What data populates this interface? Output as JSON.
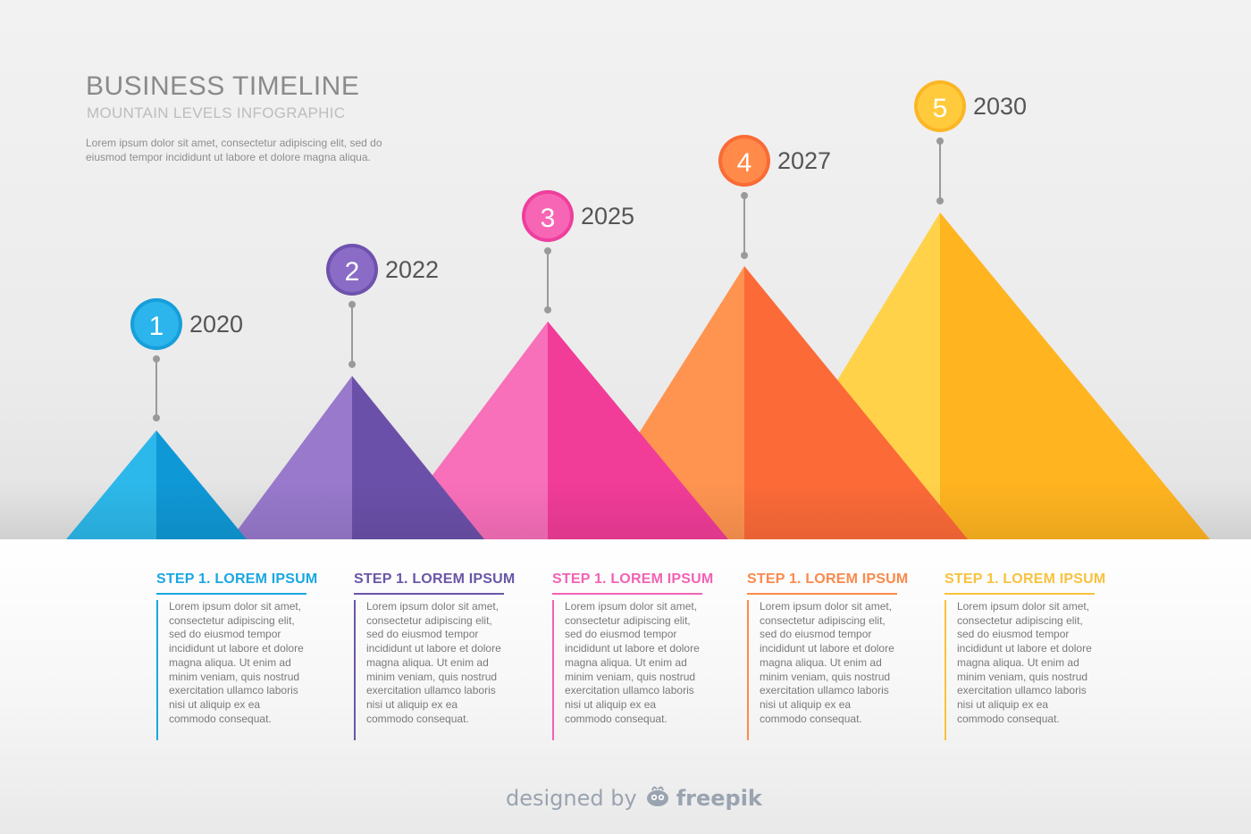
{
  "header": {
    "title": "BUSINESS TIMELINE",
    "subtitle": "MOUNTAIN LEVELS INFOGRAPHIC",
    "description": "Lorem ipsum dolor sit amet, consectetur adipiscing elit, sed do eiusmod tempor incididunt ut labore et dolore magna aliqua."
  },
  "milestones": [
    {
      "number": "1",
      "year": "2020",
      "color": "#1aa7e2",
      "light": "#45c6f2",
      "dark": "#0e91cf",
      "step_title": "STEP 1. LOREM IPSUM",
      "step_text": "Lorem ipsum dolor sit amet, consectetur adipiscing elit, sed do eiusmod tempor incididunt ut labore et dolore magna aliqua. Ut enim ad minim veniam, quis nostrud exercitation ullamco laboris nisi ut aliquip ex ea commodo consequat."
    },
    {
      "number": "2",
      "year": "2022",
      "color": "#7a5bb8",
      "light": "#9a7fd0",
      "dark": "#6a4ea6",
      "step_title": "STEP 1. LOREM IPSUM",
      "step_text": "Lorem ipsum dolor sit amet, consectetur adipiscing elit, sed do eiusmod tempor incididunt ut labore et dolore magna aliqua. Ut enim ad minim veniam, quis nostrud exercitation ullamco laboris nisi ut aliquip ex ea commodo consequat."
    },
    {
      "number": "3",
      "year": "2025",
      "color": "#f04aa8",
      "light": "#f779bf",
      "dark": "#ef3495",
      "step_title": "STEP 1. LOREM IPSUM",
      "step_text": "Lorem ipsum dolor sit amet, consectetur adipiscing elit, sed do eiusmod tempor incididunt ut labore et dolore magna aliqua. Ut enim ad minim veniam, quis nostrud exercitation ullamco laboris nisi ut aliquip ex ea commodo consequat."
    },
    {
      "number": "4",
      "year": "2027",
      "color": "#fb7e3f",
      "light": "#ff9a5a",
      "dark": "#fb6633",
      "step_title": "STEP 1. LOREM IPSUM",
      "step_text": "Lorem ipsum dolor sit amet, consectetur adipiscing elit, sed do eiusmod tempor incididunt ut labore et dolore magna aliqua. Ut enim ad minim veniam, quis nostrud exercitation ullamco laboris nisi ut aliquip ex ea commodo consequat."
    },
    {
      "number": "5",
      "year": "2030",
      "color": "#fcc43c",
      "light": "#ffd655",
      "dark": "#ffb21e",
      "step_title": "STEP 1. LOREM IPSUM",
      "step_text": "Lorem ipsum dolor sit amet, consectetur adipiscing elit, sed do eiusmod tempor incididunt ut labore et dolore magna aliqua. Ut enim ad minim veniam, quis nostrud exercitation ullamco laboris nisi ut aliquip ex ea commodo consequat."
    }
  ],
  "credit": {
    "prefix": "designed by",
    "brand": "freepik"
  }
}
